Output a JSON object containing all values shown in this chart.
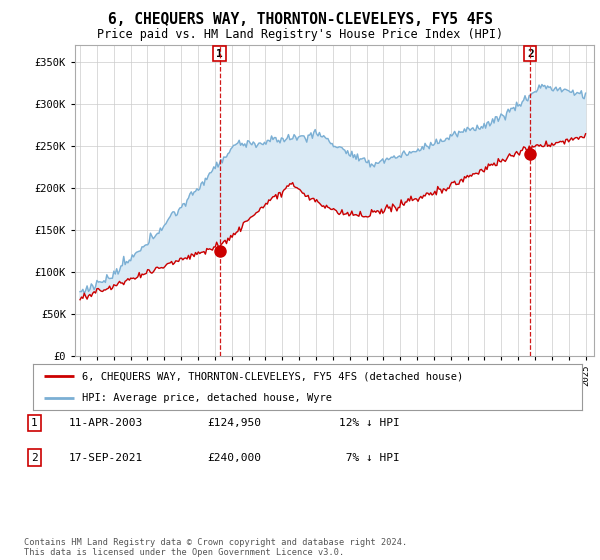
{
  "title": "6, CHEQUERS WAY, THORNTON-CLEVELEYS, FY5 4FS",
  "subtitle": "Price paid vs. HM Land Registry's House Price Index (HPI)",
  "sale1_date": "11-APR-2003",
  "sale1_price": 124950,
  "sale1_label": "1",
  "sale1_year": 2003.28,
  "sale2_date": "17-SEP-2021",
  "sale2_price": 240000,
  "sale2_label": "2",
  "sale2_year": 2021.72,
  "legend_line1": "6, CHEQUERS WAY, THORNTON-CLEVELEYS, FY5 4FS (detached house)",
  "legend_line2": "HPI: Average price, detached house, Wyre",
  "footer": "Contains HM Land Registry data © Crown copyright and database right 2024.\nThis data is licensed under the Open Government Licence v3.0.",
  "red_color": "#cc0000",
  "blue_color": "#7bafd4",
  "fill_color": "#daeaf5",
  "vline_color": "#cc0000",
  "ylim": [
    0,
    370000
  ],
  "yticks": [
    0,
    50000,
    100000,
    150000,
    200000,
    250000,
    300000,
    350000
  ],
  "xlim_start": 1994.7,
  "xlim_end": 2025.5,
  "background_color": "#ffffff"
}
